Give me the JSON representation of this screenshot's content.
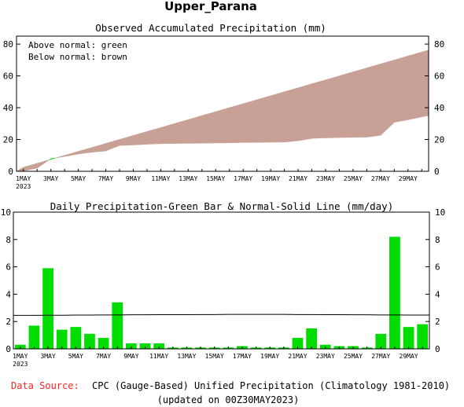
{
  "page": {
    "title": "Upper_Parana",
    "footer_source_label": "Data Source:",
    "footer_source_text": "CPC (Gauge-Based) Unified Precipitation (Climatology 1981-2010)",
    "footer_updated": "(updated on 00Z30MAY2023)"
  },
  "colors": {
    "observed_fill": "#00dd00",
    "below_normal_fill": "#c8a096",
    "daily_bar": "#00dd00",
    "normal_line": "#000000",
    "source_label": "#ff0000"
  },
  "chart_data": [
    {
      "type": "area",
      "title": "Observed Accumulated Precipitation (mm)",
      "annotations": [
        "Above normal: green",
        "Below normal: brown"
      ],
      "x": [
        "1MAY",
        "2MAY",
        "3MAY",
        "4MAY",
        "5MAY",
        "6MAY",
        "7MAY",
        "8MAY",
        "9MAY",
        "10MAY",
        "11MAY",
        "12MAY",
        "13MAY",
        "14MAY",
        "15MAY",
        "16MAY",
        "17MAY",
        "18MAY",
        "19MAY",
        "20MAY",
        "21MAY",
        "22MAY",
        "23MAY",
        "24MAY",
        "25MAY",
        "26MAY",
        "27MAY",
        "28MAY",
        "29MAY",
        "30MAY"
      ],
      "x_tick_labels": [
        "1MAY",
        "3MAY",
        "5MAY",
        "7MAY",
        "9MAY",
        "11MAY",
        "13MAY",
        "15MAY",
        "17MAY",
        "19MAY",
        "21MAY",
        "23MAY",
        "25MAY",
        "27MAY",
        "29MAY"
      ],
      "x_year_label": "2023",
      "series": [
        {
          "name": "Observed",
          "values": [
            0.3,
            2.0,
            7.9,
            9.3,
            10.9,
            12.0,
            12.8,
            16.2,
            16.6,
            17.0,
            17.4,
            17.5,
            17.6,
            17.7,
            17.8,
            17.9,
            18.1,
            18.2,
            18.3,
            18.4,
            19.2,
            20.7,
            21.0,
            21.2,
            21.4,
            21.5,
            22.6,
            30.8,
            32.4,
            34.2
          ]
        },
        {
          "name": "Normal",
          "values": [
            2.5,
            5.0,
            7.5,
            10.0,
            12.5,
            15.0,
            17.5,
            20.0,
            22.5,
            25.0,
            27.5,
            30.0,
            32.5,
            35.0,
            37.5,
            40.0,
            42.5,
            45.0,
            47.5,
            50.0,
            52.5,
            55.0,
            57.5,
            60.0,
            62.5,
            65.0,
            67.5,
            70.0,
            72.5,
            75.0
          ]
        }
      ],
      "ylim": [
        0,
        85
      ],
      "yticks": [
        0,
        20,
        40,
        60,
        80
      ],
      "grid": false
    },
    {
      "type": "bar",
      "title": "Daily Precipitation-Green Bar & Normal-Solid Line (mm/day)",
      "categories": [
        "1MAY",
        "2MAY",
        "3MAY",
        "4MAY",
        "5MAY",
        "6MAY",
        "7MAY",
        "8MAY",
        "9MAY",
        "10MAY",
        "11MAY",
        "12MAY",
        "13MAY",
        "14MAY",
        "15MAY",
        "16MAY",
        "17MAY",
        "18MAY",
        "19MAY",
        "20MAY",
        "21MAY",
        "22MAY",
        "23MAY",
        "24MAY",
        "25MAY",
        "26MAY",
        "27MAY",
        "28MAY",
        "29MAY",
        "30MAY"
      ],
      "x_tick_labels": [
        "1MAY",
        "3MAY",
        "5MAY",
        "7MAY",
        "9MAY",
        "11MAY",
        "13MAY",
        "15MAY",
        "17MAY",
        "19MAY",
        "21MAY",
        "23MAY",
        "25MAY",
        "27MAY",
        "29MAY"
      ],
      "x_year_label": "2023",
      "series": [
        {
          "name": "Daily",
          "values": [
            0.3,
            1.7,
            5.9,
            1.4,
            1.6,
            1.1,
            0.8,
            3.4,
            0.4,
            0.4,
            0.4,
            0.1,
            0.1,
            0.1,
            0.1,
            0.1,
            0.2,
            0.1,
            0.1,
            0.1,
            0.8,
            1.5,
            0.3,
            0.2,
            0.2,
            0.1,
            1.1,
            8.2,
            1.6,
            1.8
          ]
        },
        {
          "name": "Normal",
          "values": [
            2.45,
            2.45,
            2.46,
            2.46,
            2.47,
            2.47,
            2.48,
            2.48,
            2.49,
            2.49,
            2.5,
            2.5,
            2.5,
            2.51,
            2.51,
            2.52,
            2.52,
            2.52,
            2.52,
            2.52,
            2.51,
            2.51,
            2.5,
            2.5,
            2.49,
            2.49,
            2.48,
            2.48,
            2.47,
            2.47
          ]
        }
      ],
      "ylim": [
        0,
        10
      ],
      "yticks": [
        0,
        2,
        4,
        6,
        8,
        10
      ],
      "grid": false
    }
  ]
}
